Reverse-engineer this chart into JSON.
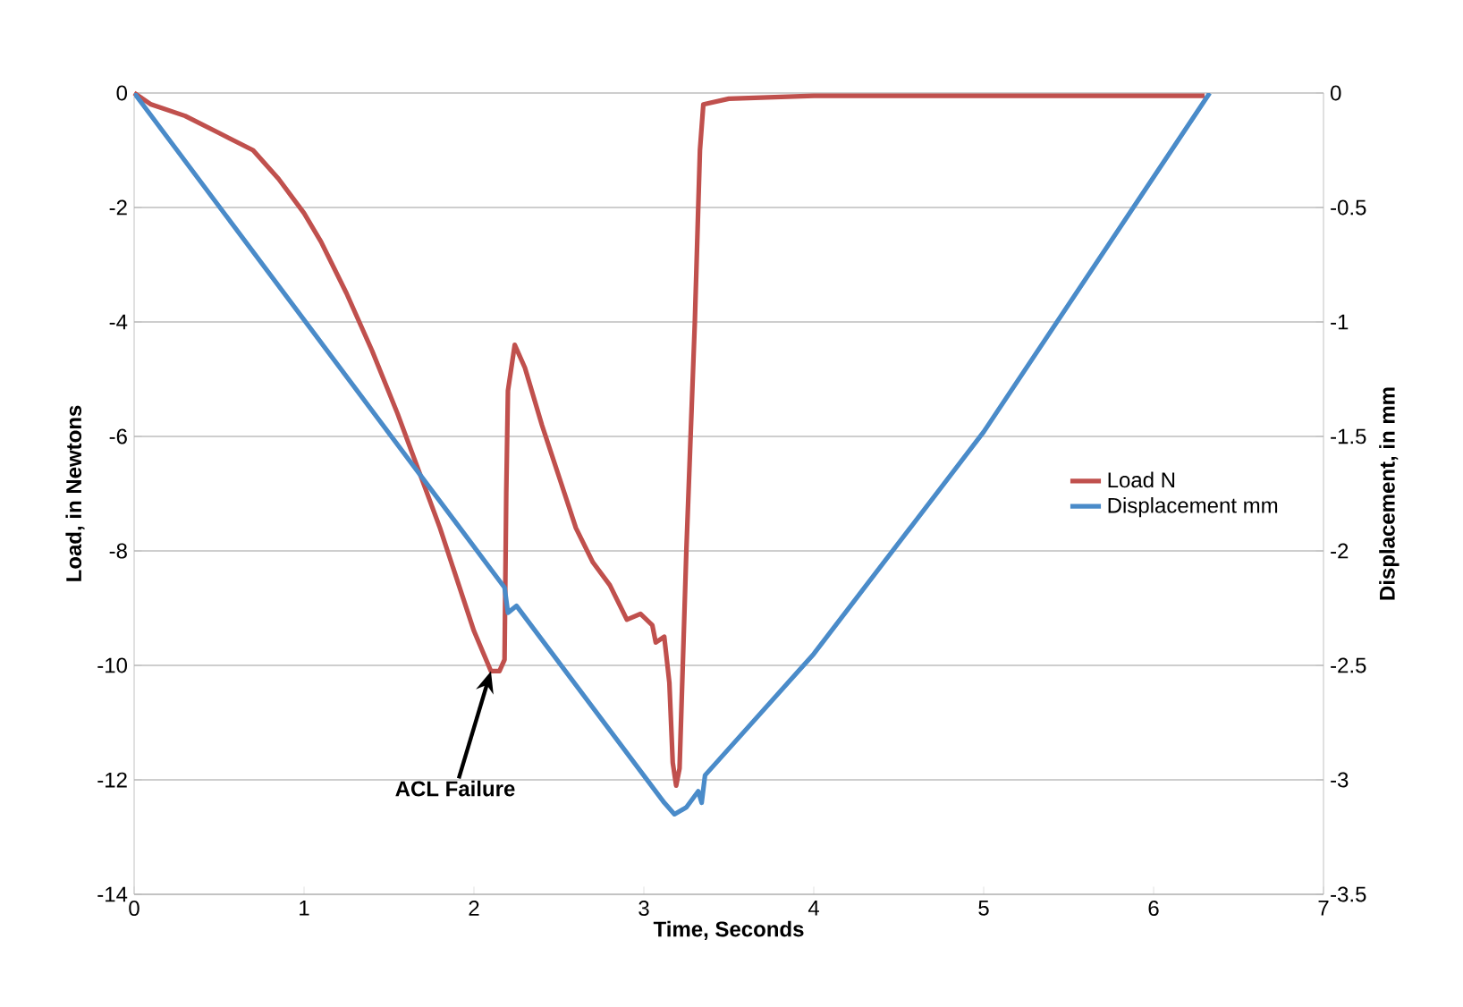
{
  "chart_data": {
    "type": "line",
    "xlabel": "Time, Seconds",
    "ylabel": "Load, in Newtons",
    "y2label": "Displacement, in mm",
    "xlim": [
      0,
      7
    ],
    "xticks": [
      0,
      1,
      2,
      3,
      4,
      5,
      6,
      7
    ],
    "ylim": [
      -14,
      0
    ],
    "yticks": [
      -14,
      -12,
      -10,
      -8,
      -6,
      -4,
      -2,
      0
    ],
    "y2lim": [
      -3.5,
      0
    ],
    "y2ticks": [
      -3.5,
      -3,
      -2.5,
      -2,
      -1.5,
      -1,
      -0.5,
      0
    ],
    "grid": "y",
    "legend": "right",
    "marker": "none",
    "line_style": "solid",
    "annotations": [
      {
        "text": "ACL Failure",
        "x": 2.1,
        "y": -10.1
      }
    ],
    "series": [
      {
        "name": "Load  N",
        "color": "#c0504d",
        "x": [
          0,
          0.1,
          0.3,
          0.5,
          0.7,
          0.85,
          1.0,
          1.1,
          1.25,
          1.4,
          1.55,
          1.7,
          1.8,
          1.9,
          2.0,
          2.1,
          2.15,
          2.18,
          2.19,
          2.2,
          2.24,
          2.3,
          2.4,
          2.5,
          2.6,
          2.7,
          2.8,
          2.9,
          2.98,
          3.05,
          3.07,
          3.12,
          3.15,
          3.17,
          3.19,
          3.21,
          3.25,
          3.3,
          3.33,
          3.35,
          3.5,
          4,
          5,
          6.3
        ],
        "values": [
          0,
          -0.2,
          -0.4,
          -0.7,
          -1.0,
          -1.5,
          -2.1,
          -2.6,
          -3.5,
          -4.5,
          -5.6,
          -6.8,
          -7.6,
          -8.5,
          -9.4,
          -10.1,
          -10.1,
          -9.9,
          -7,
          -5.2,
          -4.4,
          -4.8,
          -5.8,
          -6.7,
          -7.6,
          -8.2,
          -8.6,
          -9.2,
          -9.1,
          -9.3,
          -9.6,
          -9.5,
          -10.3,
          -11.7,
          -12.1,
          -11.8,
          -8,
          -4,
          -1,
          -0.2,
          -0.1,
          -0.05,
          -0.05,
          -0.05
        ]
      },
      {
        "name": "Displacement mm",
        "color": "#4a8bc9",
        "axis": "y2",
        "x": [
          0,
          2.18,
          2.2,
          2.25,
          3.12,
          3.18,
          3.25,
          3.32,
          3.34,
          3.36,
          4,
          5,
          6.33
        ],
        "values": [
          0,
          -2.16,
          -2.27,
          -2.24,
          -3.1,
          -3.15,
          -3.12,
          -3.05,
          -3.1,
          -2.98,
          -2.45,
          -1.48,
          0
        ]
      }
    ]
  }
}
